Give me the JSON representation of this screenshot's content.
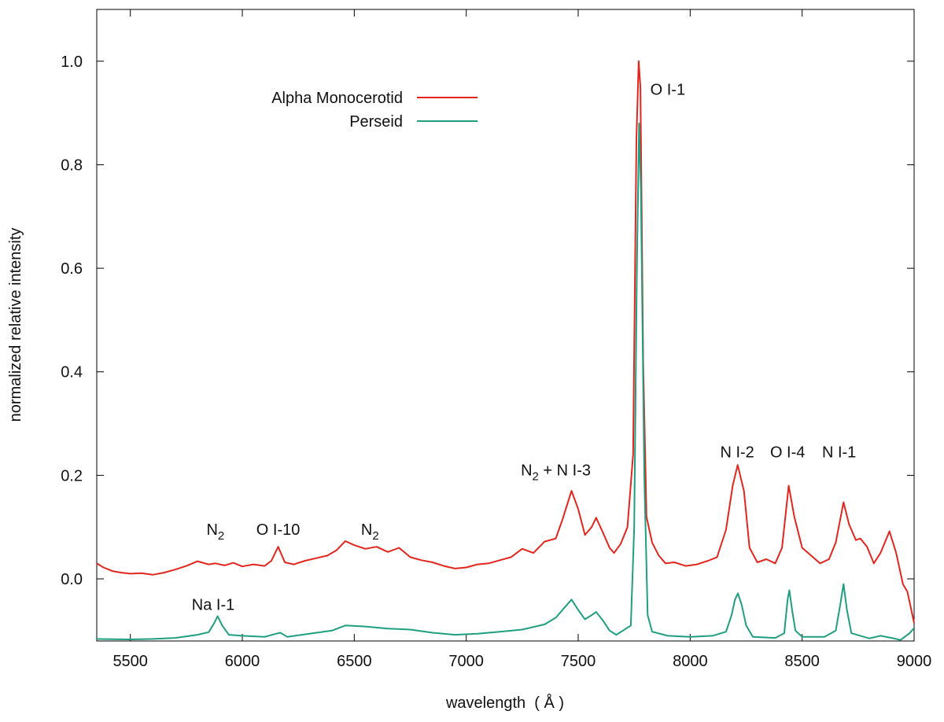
{
  "chart_data": {
    "type": "line",
    "xlabel": "wavelength  ( Å )",
    "ylabel": "normalized relative intensity",
    "xlim": [
      5350,
      9000
    ],
    "ylim": [
      -0.12,
      1.1
    ],
    "grid": false,
    "legend_position": "top-left",
    "x_ticks": [
      5500,
      6000,
      6500,
      7000,
      7500,
      8000,
      8500,
      9000
    ],
    "x_tick_labels": [
      "5500",
      "6000",
      "6500",
      "7000",
      "7500",
      "8000",
      "8500",
      "9000"
    ],
    "y_ticks": [
      0.0,
      0.2,
      0.4,
      0.6,
      0.8,
      1.0
    ],
    "y_tick_labels": [
      "0.0",
      "0.2",
      "0.4",
      "0.6",
      "0.8",
      "1.0"
    ],
    "series": [
      {
        "name": "Alpha Monocerotid",
        "color": "#e3261d",
        "points": [
          [
            5350,
            0.03
          ],
          [
            5380,
            0.022
          ],
          [
            5420,
            0.015
          ],
          [
            5460,
            0.012
          ],
          [
            5500,
            0.01
          ],
          [
            5550,
            0.011
          ],
          [
            5600,
            0.008
          ],
          [
            5650,
            0.012
          ],
          [
            5700,
            0.018
          ],
          [
            5750,
            0.025
          ],
          [
            5800,
            0.034
          ],
          [
            5850,
            0.028
          ],
          [
            5880,
            0.03
          ],
          [
            5920,
            0.026
          ],
          [
            5960,
            0.031
          ],
          [
            6000,
            0.024
          ],
          [
            6050,
            0.028
          ],
          [
            6100,
            0.025
          ],
          [
            6130,
            0.035
          ],
          [
            6160,
            0.062
          ],
          [
            6190,
            0.032
          ],
          [
            6230,
            0.028
          ],
          [
            6280,
            0.035
          ],
          [
            6330,
            0.04
          ],
          [
            6380,
            0.045
          ],
          [
            6420,
            0.055
          ],
          [
            6460,
            0.073
          ],
          [
            6500,
            0.065
          ],
          [
            6550,
            0.058
          ],
          [
            6600,
            0.062
          ],
          [
            6650,
            0.052
          ],
          [
            6700,
            0.06
          ],
          [
            6750,
            0.042
          ],
          [
            6800,
            0.036
          ],
          [
            6850,
            0.032
          ],
          [
            6900,
            0.025
          ],
          [
            6950,
            0.02
          ],
          [
            7000,
            0.022
          ],
          [
            7050,
            0.028
          ],
          [
            7100,
            0.03
          ],
          [
            7150,
            0.036
          ],
          [
            7200,
            0.042
          ],
          [
            7250,
            0.058
          ],
          [
            7300,
            0.05
          ],
          [
            7350,
            0.072
          ],
          [
            7400,
            0.078
          ],
          [
            7430,
            0.115
          ],
          [
            7470,
            0.17
          ],
          [
            7500,
            0.135
          ],
          [
            7530,
            0.085
          ],
          [
            7560,
            0.1
          ],
          [
            7580,
            0.118
          ],
          [
            7610,
            0.09
          ],
          [
            7640,
            0.06
          ],
          [
            7660,
            0.05
          ],
          [
            7690,
            0.068
          ],
          [
            7720,
            0.1
          ],
          [
            7745,
            0.24
          ],
          [
            7760,
            0.85
          ],
          [
            7770,
            1.0
          ],
          [
            7778,
            0.95
          ],
          [
            7790,
            0.42
          ],
          [
            7805,
            0.12
          ],
          [
            7830,
            0.07
          ],
          [
            7860,
            0.045
          ],
          [
            7890,
            0.03
          ],
          [
            7930,
            0.032
          ],
          [
            7980,
            0.025
          ],
          [
            8030,
            0.028
          ],
          [
            8080,
            0.035
          ],
          [
            8120,
            0.042
          ],
          [
            8160,
            0.095
          ],
          [
            8190,
            0.18
          ],
          [
            8212,
            0.22
          ],
          [
            8240,
            0.17
          ],
          [
            8265,
            0.06
          ],
          [
            8300,
            0.032
          ],
          [
            8340,
            0.038
          ],
          [
            8380,
            0.03
          ],
          [
            8410,
            0.06
          ],
          [
            8440,
            0.18
          ],
          [
            8465,
            0.12
          ],
          [
            8500,
            0.06
          ],
          [
            8540,
            0.045
          ],
          [
            8580,
            0.03
          ],
          [
            8620,
            0.038
          ],
          [
            8650,
            0.07
          ],
          [
            8685,
            0.148
          ],
          [
            8710,
            0.105
          ],
          [
            8740,
            0.075
          ],
          [
            8760,
            0.078
          ],
          [
            8790,
            0.062
          ],
          [
            8820,
            0.03
          ],
          [
            8850,
            0.05
          ],
          [
            8890,
            0.092
          ],
          [
            8920,
            0.05
          ],
          [
            8950,
            -0.01
          ],
          [
            8970,
            -0.025
          ],
          [
            9000,
            -0.085
          ]
        ]
      },
      {
        "name": "Perseid",
        "color": "#1f9e80",
        "points": [
          [
            5350,
            -0.116
          ],
          [
            5500,
            -0.117
          ],
          [
            5600,
            -0.116
          ],
          [
            5700,
            -0.114
          ],
          [
            5800,
            -0.108
          ],
          [
            5850,
            -0.103
          ],
          [
            5875,
            -0.085
          ],
          [
            5890,
            -0.072
          ],
          [
            5910,
            -0.09
          ],
          [
            5940,
            -0.108
          ],
          [
            6000,
            -0.11
          ],
          [
            6100,
            -0.112
          ],
          [
            6150,
            -0.106
          ],
          [
            6170,
            -0.104
          ],
          [
            6200,
            -0.112
          ],
          [
            6300,
            -0.106
          ],
          [
            6400,
            -0.1
          ],
          [
            6460,
            -0.09
          ],
          [
            6550,
            -0.092
          ],
          [
            6650,
            -0.096
          ],
          [
            6750,
            -0.098
          ],
          [
            6850,
            -0.104
          ],
          [
            6950,
            -0.108
          ],
          [
            7050,
            -0.106
          ],
          [
            7150,
            -0.102
          ],
          [
            7250,
            -0.098
          ],
          [
            7350,
            -0.088
          ],
          [
            7400,
            -0.075
          ],
          [
            7440,
            -0.055
          ],
          [
            7470,
            -0.04
          ],
          [
            7500,
            -0.06
          ],
          [
            7530,
            -0.078
          ],
          [
            7560,
            -0.07
          ],
          [
            7580,
            -0.064
          ],
          [
            7610,
            -0.08
          ],
          [
            7640,
            -0.1
          ],
          [
            7670,
            -0.108
          ],
          [
            7700,
            -0.1
          ],
          [
            7735,
            -0.09
          ],
          [
            7750,
            0.1
          ],
          [
            7762,
            0.6
          ],
          [
            7772,
            0.88
          ],
          [
            7780,
            0.75
          ],
          [
            7795,
            0.2
          ],
          [
            7810,
            -0.07
          ],
          [
            7830,
            -0.102
          ],
          [
            7900,
            -0.11
          ],
          [
            8000,
            -0.112
          ],
          [
            8100,
            -0.11
          ],
          [
            8160,
            -0.102
          ],
          [
            8185,
            -0.07
          ],
          [
            8200,
            -0.04
          ],
          [
            8213,
            -0.028
          ],
          [
            8230,
            -0.05
          ],
          [
            8250,
            -0.09
          ],
          [
            8280,
            -0.112
          ],
          [
            8380,
            -0.114
          ],
          [
            8420,
            -0.105
          ],
          [
            8435,
            -0.04
          ],
          [
            8443,
            -0.022
          ],
          [
            8455,
            -0.06
          ],
          [
            8470,
            -0.1
          ],
          [
            8500,
            -0.112
          ],
          [
            8600,
            -0.112
          ],
          [
            8650,
            -0.1
          ],
          [
            8670,
            -0.05
          ],
          [
            8685,
            -0.01
          ],
          [
            8700,
            -0.06
          ],
          [
            8720,
            -0.105
          ],
          [
            8760,
            -0.11
          ],
          [
            8800,
            -0.115
          ],
          [
            8850,
            -0.11
          ],
          [
            8900,
            -0.114
          ],
          [
            8940,
            -0.118
          ],
          [
            8980,
            -0.105
          ],
          [
            9000,
            -0.095
          ]
        ]
      }
    ],
    "annotations": [
      {
        "text": "N",
        "sub": "2",
        "x": 5880,
        "y": 0.085
      },
      {
        "text": "O I-10",
        "x": 6160,
        "y": 0.085
      },
      {
        "text": "N",
        "sub": "2",
        "x": 6570,
        "y": 0.085
      },
      {
        "text": "N",
        "sub": "2",
        "suffix": " + N I-3",
        "x": 7400,
        "y": 0.2
      },
      {
        "text": "O I-1",
        "x": 7900,
        "y": 0.935
      },
      {
        "text": "N I-2",
        "x": 8210,
        "y": 0.235
      },
      {
        "text": "O I-4",
        "x": 8435,
        "y": 0.235
      },
      {
        "text": "N I-1",
        "x": 8665,
        "y": 0.235
      },
      {
        "text": "Na I-1",
        "x": 5870,
        "y": -0.06
      }
    ]
  }
}
